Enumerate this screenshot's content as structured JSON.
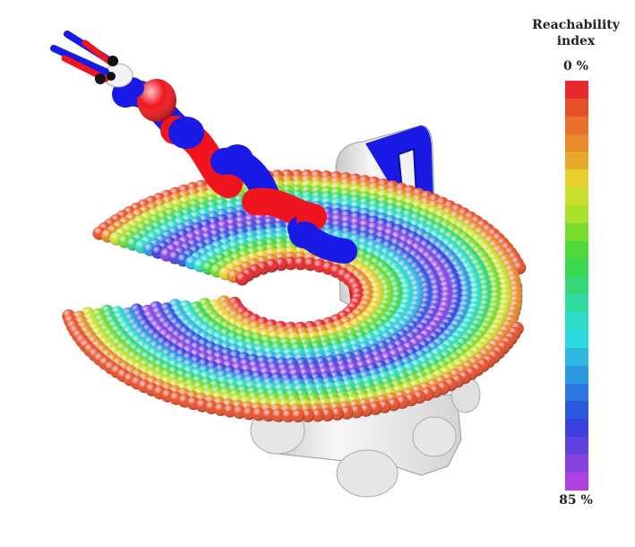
{
  "legend": {
    "title_line1": "Reachability",
    "title_line2": "index",
    "top_label": "0 %",
    "bottom_label": "85 %",
    "colors": [
      "#e8282c",
      "#e8502c",
      "#e8702c",
      "#e88a2c",
      "#e8a82c",
      "#e8d02c",
      "#c8e02c",
      "#a8e02c",
      "#78dc2c",
      "#50d83a",
      "#3ad850",
      "#34d878",
      "#30dca0",
      "#2cdcc8",
      "#2cd8e0",
      "#2cb8e0",
      "#2c98e0",
      "#2c78e0",
      "#2c58e0",
      "#3c40e0",
      "#6040e0",
      "#8840e0",
      "#b040e0"
    ]
  },
  "colors": {
    "robot_red": "#f0141e",
    "robot_blue": "#1a1ae6",
    "robot_white": "#f2f2f2",
    "tray_green": "#1ef01e"
  }
}
